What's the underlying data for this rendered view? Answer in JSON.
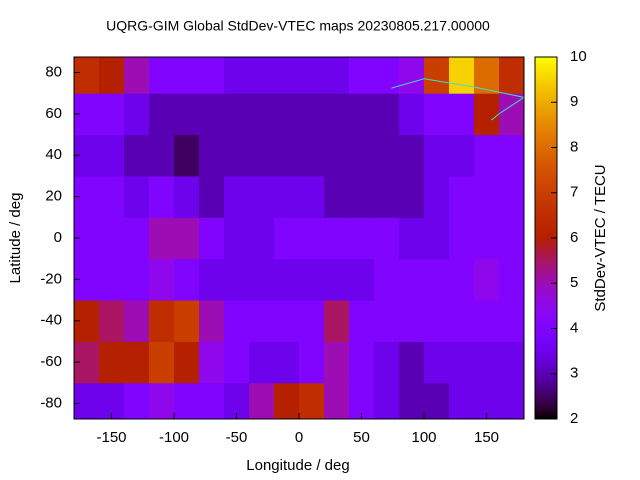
{
  "chart_data": {
    "type": "heatmap",
    "title": "UQRG-GIM Global StdDev-VTEC maps 20230805.217.00000",
    "x_label": "Longitude / deg",
    "y_label": "Latitude / deg",
    "colorbar_label": "StdDev-VTEC / TECU",
    "xbins": [
      -180,
      -160,
      -140,
      -120,
      -100,
      -80,
      -60,
      -40,
      -20,
      0,
      20,
      40,
      60,
      80,
      100,
      120,
      140,
      160,
      180
    ],
    "ybins": [
      -87.5,
      -70,
      -50,
      -30,
      -10,
      10,
      30,
      50,
      70,
      87.5
    ],
    "values": [
      [
        3.5,
        3.5,
        4,
        4.5,
        4,
        4,
        3.5,
        5,
        6,
        6.5,
        5,
        4,
        3.5,
        3,
        3,
        3.5,
        3.5,
        3.5
      ],
      [
        5.5,
        6,
        6,
        7,
        6,
        4.5,
        4,
        3.5,
        3.5,
        4,
        5,
        4,
        3.5,
        3,
        3.5,
        3.5,
        3.5,
        3.5
      ],
      [
        6,
        5.5,
        5,
        6.5,
        7,
        5,
        4,
        4,
        4,
        4,
        5.5,
        4,
        4,
        4,
        4,
        4,
        4,
        4
      ],
      [
        4,
        4,
        4,
        4.5,
        4,
        3.5,
        3.5,
        3.5,
        3.5,
        3.5,
        3.5,
        3.5,
        4,
        4,
        4,
        4,
        4.5,
        4
      ],
      [
        4,
        4,
        4,
        5,
        5,
        4,
        3.5,
        3.5,
        4,
        4,
        4,
        4,
        4,
        3.5,
        3.5,
        4,
        4,
        4
      ],
      [
        4,
        4,
        3.5,
        4,
        3.5,
        3,
        3.5,
        3.5,
        3.5,
        3.5,
        3,
        3,
        3,
        3,
        3.5,
        4,
        4,
        4
      ],
      [
        3.5,
        3.5,
        3,
        3,
        2.5,
        3,
        3,
        3,
        3,
        3,
        3,
        3,
        3,
        3,
        3.5,
        3.5,
        4,
        4
      ],
      [
        4,
        4,
        3.5,
        3,
        3,
        3,
        3,
        3,
        3,
        3,
        3,
        3,
        3,
        3.5,
        4,
        4,
        6,
        5
      ],
      [
        6.5,
        6,
        5,
        4,
        4,
        4,
        3.5,
        3.5,
        3.5,
        3.5,
        3.5,
        4,
        4,
        4.5,
        7,
        9.5,
        8,
        6.5
      ]
    ],
    "xlim": [
      -180,
      180
    ],
    "ylim": [
      -87.5,
      87.5
    ],
    "clim": [
      2,
      10
    ],
    "xticks": [
      -150,
      -100,
      -50,
      0,
      50,
      100,
      150
    ],
    "yticks": [
      -80,
      -60,
      -40,
      -20,
      0,
      20,
      40,
      60,
      80
    ],
    "cticks": [
      2,
      3,
      4,
      5,
      6,
      7,
      8,
      9,
      10
    ],
    "coastline_color": "#40e0d0"
  }
}
